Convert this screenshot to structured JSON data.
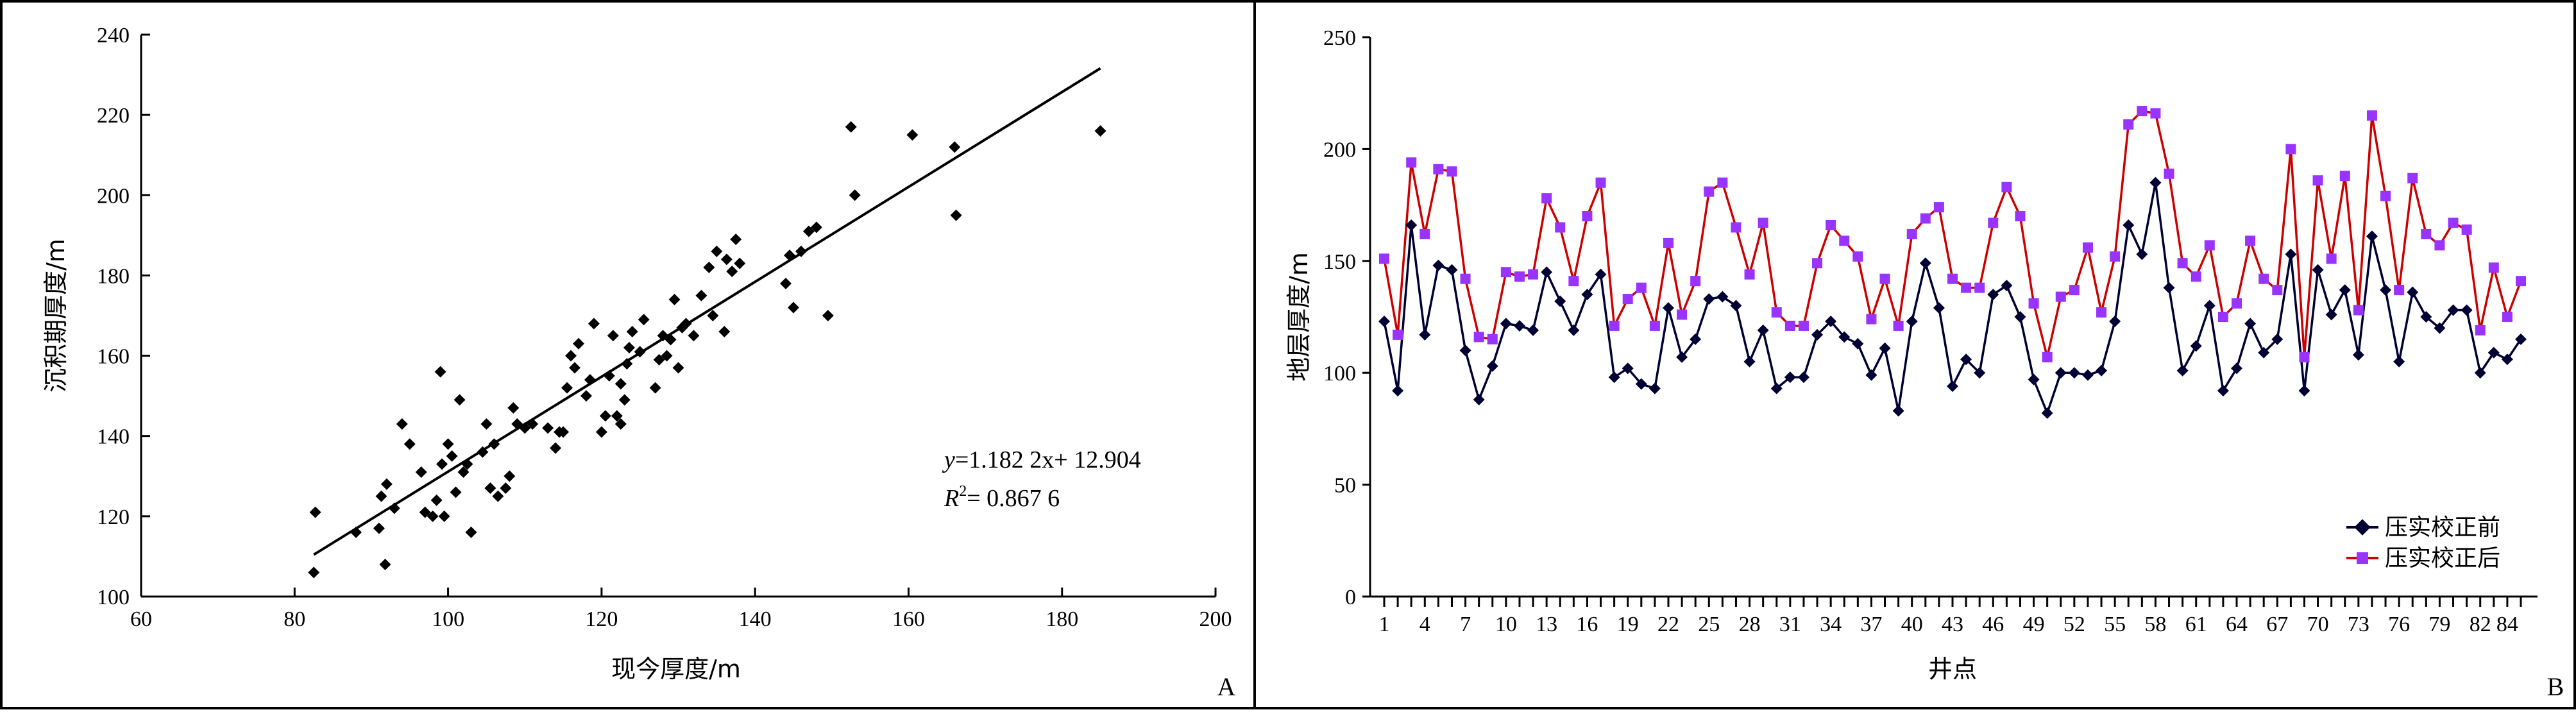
{
  "chart_data": [
    {
      "type": "scatter",
      "panel_label": "A",
      "xlabel": "现今厚度/m",
      "ylabel": "沉积期厚度/m",
      "xlim": [
        60,
        200
      ],
      "ylim": [
        100,
        240
      ],
      "xticks": [
        "60",
        "80",
        "100",
        "120",
        "140",
        "160",
        "180",
        "200"
      ],
      "yticks": [
        "100",
        "120",
        "140",
        "160",
        "180",
        "200",
        "220",
        "240"
      ],
      "marker_color": "#000000",
      "trendline": {
        "slope": 1.1822,
        "intercept": 12.904,
        "x_range": [
          82.5,
          185
        ]
      },
      "equation_text": {
        "y_var": "y",
        "y_rest": "=1.182 2x+ 12.904",
        "r_var": "R",
        "r_sup": "2",
        "r_rest": "= 0.867 6"
      },
      "points": [
        [
          82.5,
          106
        ],
        [
          82.7,
          121
        ],
        [
          88,
          116
        ],
        [
          91,
          117
        ],
        [
          91.3,
          125
        ],
        [
          91.8,
          108
        ],
        [
          92,
          128
        ],
        [
          93,
          122
        ],
        [
          94,
          143
        ],
        [
          95,
          138
        ],
        [
          96.5,
          131
        ],
        [
          97,
          121
        ],
        [
          98,
          120
        ],
        [
          98.5,
          124
        ],
        [
          99,
          156
        ],
        [
          99.2,
          133
        ],
        [
          99.5,
          120
        ],
        [
          100,
          138
        ],
        [
          100.5,
          135
        ],
        [
          101,
          126
        ],
        [
          101.5,
          149
        ],
        [
          102,
          131
        ],
        [
          102.5,
          133
        ],
        [
          103,
          116
        ],
        [
          104.5,
          136
        ],
        [
          105.5,
          127
        ],
        [
          105,
          143
        ],
        [
          106,
          138
        ],
        [
          106.5,
          125
        ],
        [
          107.5,
          127
        ],
        [
          108,
          130
        ],
        [
          108.5,
          147
        ],
        [
          109,
          143
        ],
        [
          110,
          142
        ],
        [
          111,
          143
        ],
        [
          113,
          142
        ],
        [
          114,
          137
        ],
        [
          114.5,
          141
        ],
        [
          115,
          141
        ],
        [
          115.5,
          152
        ],
        [
          116,
          160
        ],
        [
          116.5,
          157
        ],
        [
          117,
          163
        ],
        [
          118,
          150
        ],
        [
          118.5,
          154
        ],
        [
          119,
          168
        ],
        [
          120,
          141
        ],
        [
          120.5,
          145
        ],
        [
          121,
          155
        ],
        [
          121.5,
          165
        ],
        [
          122,
          145
        ],
        [
          122.5,
          143
        ],
        [
          122.5,
          153
        ],
        [
          123,
          149
        ],
        [
          123.3,
          158
        ],
        [
          123.6,
          162
        ],
        [
          124,
          166
        ],
        [
          125,
          161
        ],
        [
          125.5,
          169
        ],
        [
          127,
          152
        ],
        [
          127.5,
          159
        ],
        [
          128,
          165
        ],
        [
          128.5,
          160
        ],
        [
          129,
          164
        ],
        [
          129.5,
          174
        ],
        [
          130,
          157
        ],
        [
          130.5,
          167
        ],
        [
          131,
          168
        ],
        [
          132,
          165
        ],
        [
          133,
          175
        ],
        [
          134,
          182
        ],
        [
          134.5,
          170
        ],
        [
          135,
          186
        ],
        [
          136,
          166
        ],
        [
          136.3,
          184
        ],
        [
          137,
          181
        ],
        [
          137.5,
          189
        ],
        [
          138,
          183
        ],
        [
          144,
          178
        ],
        [
          144.5,
          185
        ],
        [
          145,
          172
        ],
        [
          146,
          186
        ],
        [
          147,
          191
        ],
        [
          148,
          192
        ],
        [
          149.5,
          170
        ],
        [
          152.5,
          217
        ],
        [
          153,
          200
        ],
        [
          160.5,
          215
        ],
        [
          166,
          212
        ],
        [
          166.2,
          195
        ],
        [
          185,
          216
        ]
      ]
    },
    {
      "type": "line",
      "panel_label": "B",
      "xlabel": "井点",
      "ylabel": "地层厚度/m",
      "ylim": [
        0,
        250
      ],
      "yticks": [
        "0",
        "50",
        "100",
        "150",
        "200",
        "250"
      ],
      "xtick_labels": [
        "1",
        "4",
        "7",
        "10",
        "13",
        "16",
        "19",
        "22",
        "25",
        "28",
        "31",
        "34",
        "37",
        "40",
        "43",
        "46",
        "49",
        "52",
        "55",
        "58",
        "61",
        "64",
        "67",
        "70",
        "73",
        "76",
        "79",
        "82",
        "84"
      ],
      "legend_position": "bottom-right",
      "series": [
        {
          "name": "压实校正前",
          "color": "#000033",
          "marker": "diamond",
          "values": [
            123,
            92,
            166,
            117,
            148,
            146,
            110,
            88,
            103,
            122,
            121,
            119,
            145,
            132,
            119,
            135,
            144,
            98,
            102,
            95,
            93,
            129,
            107,
            115,
            133,
            134,
            130,
            105,
            119,
            93,
            98,
            98,
            117,
            123,
            116,
            113,
            99,
            111,
            83,
            123,
            149,
            129,
            94,
            106,
            100,
            135,
            139,
            125,
            97,
            82,
            100,
            100,
            99,
            101,
            123,
            166,
            153,
            185,
            138,
            101,
            112,
            130,
            92,
            102,
            122,
            109,
            115,
            153,
            92,
            146,
            126,
            137,
            108,
            161,
            137,
            105,
            136,
            125,
            120,
            128,
            128,
            100,
            109,
            106,
            115
          ]
        },
        {
          "name": "压实校正后",
          "color": "#cc0000",
          "marker": "square",
          "marker_color": "#9933ff",
          "values": [
            151,
            117,
            194,
            162,
            191,
            190,
            142,
            116,
            115,
            145,
            143,
            144,
            178,
            165,
            141,
            170,
            185,
            121,
            133,
            138,
            121,
            158,
            126,
            141,
            181,
            185,
            165,
            144,
            167,
            127,
            121,
            121,
            149,
            166,
            159,
            152,
            124,
            142,
            121,
            162,
            169,
            174,
            142,
            138,
            138,
            167,
            183,
            170,
            131,
            107,
            134,
            137,
            156,
            127,
            152,
            211,
            217,
            216,
            189,
            149,
            143,
            157,
            125,
            131,
            159,
            142,
            137,
            200,
            107,
            186,
            151,
            188,
            128,
            215,
            179,
            137,
            187,
            162,
            157,
            167,
            164,
            119,
            147,
            125,
            141
          ]
        }
      ]
    }
  ]
}
